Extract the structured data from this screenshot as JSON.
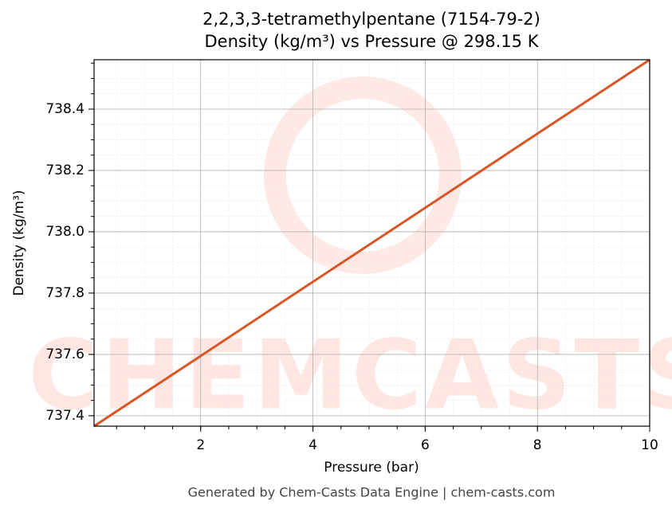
{
  "chart_data": {
    "type": "line",
    "title": "2,2,3,3-tetramethylpentane (7154-79-2)",
    "subtitle": "Density (kg/m³) vs Pressure @ 298.15 K",
    "x_label": "Pressure (bar)",
    "y_label": "Density (kg/m³)",
    "footer": "Generated by Chem-Casts Data Engine | chem-casts.com",
    "watermark": "CHEMCASTS",
    "x": [
      0.1,
      2,
      4,
      6,
      8,
      10
    ],
    "series": [
      {
        "name": "Density",
        "color": "#d95525",
        "values": [
          737.366,
          737.595,
          737.837,
          738.078,
          738.32,
          738.561
        ]
      }
    ],
    "xlim": [
      0.1,
      10
    ],
    "ylim": [
      737.366,
      738.561
    ],
    "xticks": [
      2,
      4,
      6,
      8,
      10
    ],
    "yticks": [
      {
        "value": 737.4,
        "label": "737.4"
      },
      {
        "value": 737.6,
        "label": "737.6"
      },
      {
        "value": 737.8,
        "label": "737.8"
      },
      {
        "value": 738.0,
        "label": "738.0"
      },
      {
        "value": 738.2,
        "label": "738.2"
      },
      {
        "value": 738.4,
        "label": "738.4"
      }
    ],
    "grid": true
  }
}
